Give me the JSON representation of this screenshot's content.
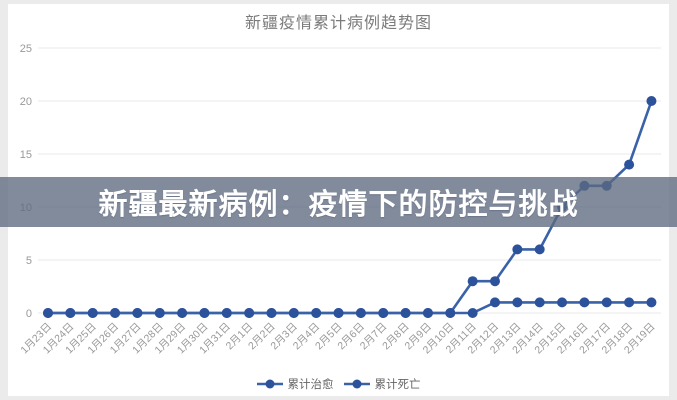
{
  "page": {
    "background": "#ebebeb",
    "panel_background": "#ffffff"
  },
  "header": {
    "title": "新疆疫情累计病例趋势图"
  },
  "overlay_banner": {
    "text": "新疆最新病例：疫情下的防控与挑战",
    "background": "#5e6a80",
    "text_color": "#ffffff"
  },
  "legend": {
    "items": [
      {
        "label": "累计治愈"
      },
      {
        "label": "累计死亡"
      }
    ]
  },
  "colors": {
    "series_line": "#3a62a8",
    "series_dot": "#2d529c",
    "gridline": "#e8e8e8",
    "axis_label": "#999999",
    "title_text": "#7b7b7b",
    "legend_text": "#666666"
  },
  "chart_data": {
    "type": "line",
    "title": "新疆疫情累计病例趋势图",
    "categories": [
      "1月23日",
      "1月24日",
      "1月25日",
      "1月26日",
      "1月27日",
      "1月28日",
      "1月29日",
      "1月30日",
      "1月31日",
      "2月1日",
      "2月2日",
      "2月3日",
      "2月4日",
      "2月5日",
      "2月6日",
      "2月7日",
      "2月8日",
      "2月9日",
      "2月10日",
      "2月11日",
      "2月12日",
      "2月13日",
      "2月14日",
      "2月15日",
      "2月16日",
      "2月17日",
      "2月18日",
      "2月19日"
    ],
    "series": [
      {
        "name": "累计治愈",
        "values": [
          0,
          0,
          0,
          0,
          0,
          0,
          0,
          0,
          0,
          0,
          0,
          0,
          0,
          0,
          0,
          0,
          0,
          0,
          0,
          3,
          3,
          6,
          6,
          10,
          12,
          12,
          14,
          20
        ]
      },
      {
        "name": "累计死亡",
        "values": [
          0,
          0,
          0,
          0,
          0,
          0,
          0,
          0,
          0,
          0,
          0,
          0,
          0,
          0,
          0,
          0,
          0,
          0,
          0,
          0,
          1,
          1,
          1,
          1,
          1,
          1,
          1,
          1
        ]
      }
    ],
    "xlabel": "",
    "ylabel": "",
    "ylim": [
      0,
      25
    ],
    "yticks": [
      0,
      5,
      10,
      15,
      20,
      25
    ],
    "grid": true,
    "legend_position": "bottom"
  }
}
